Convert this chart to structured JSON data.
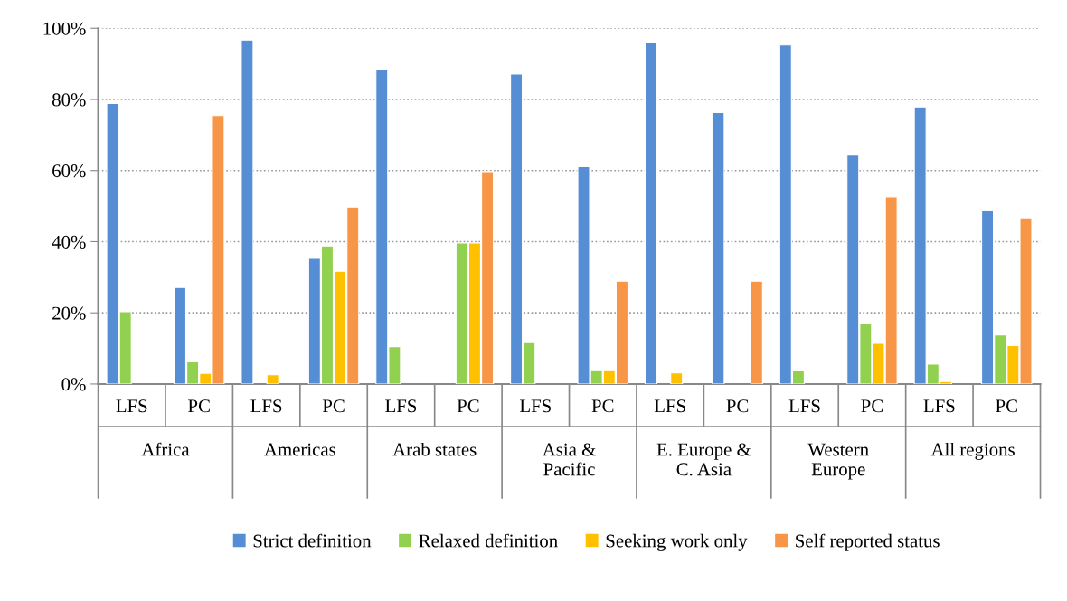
{
  "chart_data": {
    "type": "bar",
    "categories": [
      "LFS",
      "PC",
      "LFS",
      "PC",
      "LFS",
      "PC",
      "LFS",
      "PC",
      "LFS",
      "PC",
      "LFS",
      "PC",
      "LFS",
      "PC"
    ],
    "series": [
      {
        "name": "Strict definition",
        "color": "#558ed5",
        "values": [
          78.9,
          27.1,
          96.7,
          35.3,
          88.5,
          null,
          87.1,
          61.1,
          95.9,
          76.3,
          95.3,
          64.3,
          77.9,
          48.8
        ]
      },
      {
        "name": "Relaxed definition",
        "color": "#92d050",
        "values": [
          20.3,
          6.4,
          null,
          38.8,
          10.5,
          39.6,
          11.9,
          4.0,
          null,
          null,
          3.8,
          17.0,
          5.6,
          13.8
        ]
      },
      {
        "name": "Seeking work only",
        "color": "#ffc000",
        "values": [
          null,
          3.0,
          2.6,
          31.7,
          null,
          39.6,
          null,
          4.0,
          3.1,
          null,
          null,
          11.4,
          0.7,
          10.8
        ]
      },
      {
        "name": "Self reported status",
        "color": "#f79646",
        "values": [
          null,
          75.5,
          null,
          49.7,
          null,
          59.7,
          null,
          28.9,
          null,
          28.9,
          null,
          52.6,
          null,
          46.7
        ]
      }
    ],
    "ylim": [
      0,
      100
    ],
    "yticks": [
      {
        "value": 0,
        "label": "0%"
      },
      {
        "value": 20,
        "label": "20%"
      },
      {
        "value": 40,
        "label": "40%"
      },
      {
        "value": 60,
        "label": "60%"
      },
      {
        "value": 80,
        "label": "80%"
      },
      {
        "value": 100,
        "label": "100%"
      }
    ],
    "grid": "y",
    "legend": "bottom",
    "annotations": [
      "Africa",
      "Americas",
      "Arab states",
      "Asia &\nPacific",
      "E. Europe &\nC. Asia",
      "Western\nEurope",
      "All regions"
    ]
  }
}
